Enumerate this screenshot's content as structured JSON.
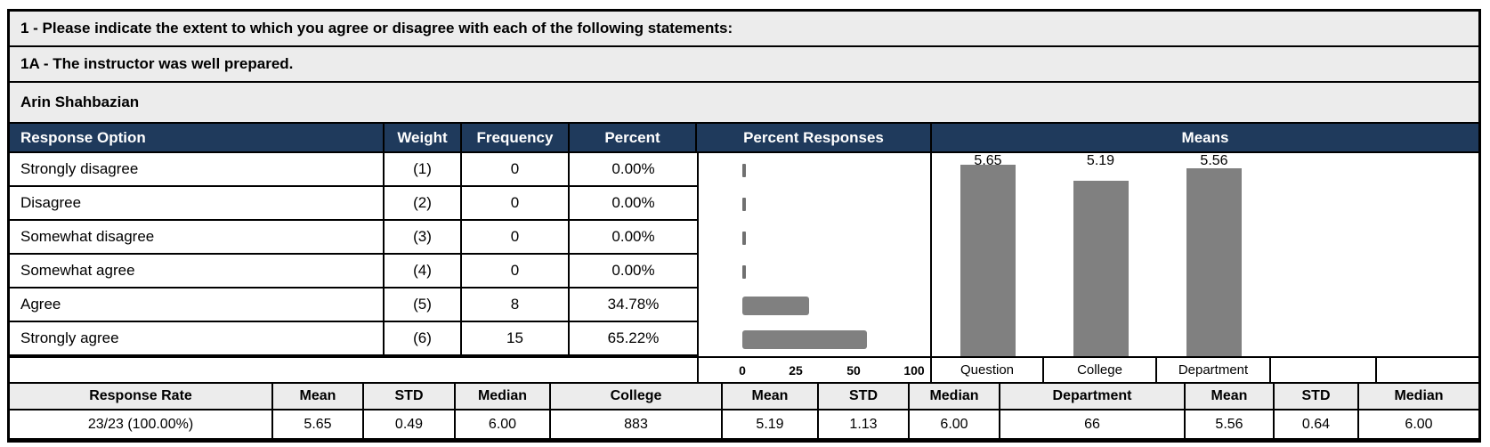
{
  "header": {
    "question_group": "1 - Please indicate the extent to which you agree or disagree with each of the following statements:",
    "question": "1A - The instructor was well prepared.",
    "instructor": "Arin Shahbazian"
  },
  "table": {
    "col_response_option": "Response Option",
    "col_weight": "Weight",
    "col_frequency": "Frequency",
    "col_percent": "Percent",
    "col_percent_responses": "Percent Responses",
    "col_means": "Means",
    "rows": [
      {
        "option": "Strongly disagree",
        "weight": "(1)",
        "frequency": "0",
        "percent": "0.00%",
        "percent_value": 0
      },
      {
        "option": "Disagree",
        "weight": "(2)",
        "frequency": "0",
        "percent": "0.00%",
        "percent_value": 0
      },
      {
        "option": "Somewhat disagree",
        "weight": "(3)",
        "frequency": "0",
        "percent": "0.00%",
        "percent_value": 0
      },
      {
        "option": "Somewhat agree",
        "weight": "(4)",
        "frequency": "0",
        "percent": "0.00%",
        "percent_value": 0
      },
      {
        "option": "Agree",
        "weight": "(5)",
        "frequency": "8",
        "percent": "34.78%",
        "percent_value": 34.78
      },
      {
        "option": "Strongly agree",
        "weight": "(6)",
        "frequency": "15",
        "percent": "65.22%",
        "percent_value": 65.22
      }
    ]
  },
  "percent_chart": {
    "axis_ticks": [
      "0",
      "25",
      "50",
      "100"
    ]
  },
  "means_chart": {
    "scale_max": 6,
    "bars": [
      {
        "label": "Question",
        "value": 5.65,
        "display": "5.65"
      },
      {
        "label": "College",
        "value": 5.19,
        "display": "5.19"
      },
      {
        "label": "Department",
        "value": 5.56,
        "display": "5.56"
      }
    ]
  },
  "summary": {
    "cells": [
      {
        "header": "Response Rate",
        "value": "23/23 (100.00%)"
      },
      {
        "header": "Mean",
        "value": "5.65"
      },
      {
        "header": "STD",
        "value": "0.49"
      },
      {
        "header": "Median",
        "value": "6.00"
      },
      {
        "header": "College",
        "value": "883"
      },
      {
        "header": "Mean",
        "value": "5.19"
      },
      {
        "header": "STD",
        "value": "1.13"
      },
      {
        "header": "Median",
        "value": "6.00"
      },
      {
        "header": "Department",
        "value": "66"
      },
      {
        "header": "Mean",
        "value": "5.56"
      },
      {
        "header": "STD",
        "value": "0.64"
      },
      {
        "header": "Median",
        "value": "6.00"
      }
    ]
  },
  "colors": {
    "header_bar": "#1F3A5C",
    "bar_gray": "#808080",
    "row_bg": "#ECECEC"
  },
  "chart_data": [
    {
      "type": "bar",
      "orientation": "horizontal",
      "title": "Percent Responses",
      "categories": [
        "Strongly disagree",
        "Disagree",
        "Somewhat disagree",
        "Somewhat agree",
        "Agree",
        "Strongly agree"
      ],
      "values": [
        0,
        0,
        0,
        0,
        34.78,
        65.22
      ],
      "xlabel": "",
      "ylabel": "",
      "xlim": [
        0,
        100
      ],
      "x_ticks": [
        0,
        25,
        50,
        100
      ],
      "grid": false,
      "legend": false
    },
    {
      "type": "bar",
      "orientation": "vertical",
      "title": "Means",
      "categories": [
        "Question",
        "College",
        "Department"
      ],
      "values": [
        5.65,
        5.19,
        5.56
      ],
      "data_labels": [
        "5.65",
        "5.19",
        "5.56"
      ],
      "xlabel": "",
      "ylabel": "",
      "ylim": [
        0,
        6
      ],
      "grid": false,
      "legend": false
    }
  ]
}
